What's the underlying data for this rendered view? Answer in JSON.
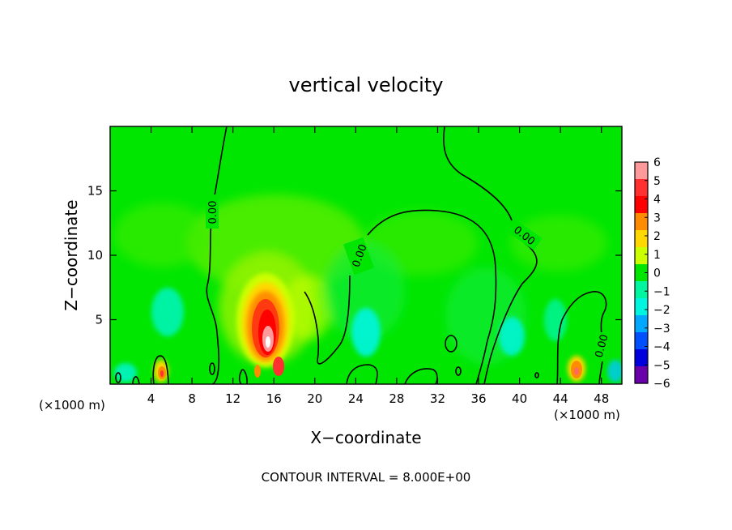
{
  "chart_data": {
    "type": "heatmap",
    "title": "vertical velocity",
    "xlabel": "X−coordinate",
    "ylabel": "Z−coordinate",
    "x_unit": "(×1000 m)",
    "x_unit_right": "(×1000 m)",
    "xlim": [
      0,
      50
    ],
    "ylim": [
      0,
      20
    ],
    "x_ticks": [
      4,
      8,
      12,
      16,
      20,
      24,
      28,
      32,
      36,
      40,
      44,
      48
    ],
    "y_ticks": [
      5,
      10,
      15
    ],
    "x_tick_labels": [
      "4",
      "8",
      "12",
      "16",
      "20",
      "24",
      "28",
      "32",
      "36",
      "40",
      "44",
      "48"
    ],
    "y_tick_labels": [
      "5",
      "10",
      "15"
    ],
    "colorbar": {
      "levels": [
        6,
        5,
        4,
        3,
        2,
        1,
        0,
        -1,
        -2,
        -3,
        -4,
        -5,
        -6
      ],
      "labels": [
        "6",
        "5",
        "4",
        "3",
        "2",
        "1",
        "0",
        "−1",
        "−2",
        "−3",
        "−4",
        "−5",
        "−6"
      ],
      "colors": [
        "#ff9a9a",
        "#ff3030",
        "#ff0000",
        "#ff8c00",
        "#ffd800",
        "#ccff00",
        "#00e600",
        "#00f5a0",
        "#00f5e0",
        "#00a8ff",
        "#0050ff",
        "#0000dd",
        "#6a00aa"
      ]
    },
    "contour_label": "0.00",
    "footer": "CONTOUR INTERVAL = 8.000E+00",
    "features": [
      {
        "type": "updraft",
        "x": 15,
        "z": 3.5,
        "w": 6
      },
      {
        "type": "updraft",
        "x": 5,
        "z": 0.8,
        "w": 4
      },
      {
        "type": "updraft",
        "x": 45.5,
        "z": 1.2,
        "w": 4
      },
      {
        "type": "downdraft",
        "x": 5.5,
        "z": 5,
        "w": -2
      },
      {
        "type": "downdraft",
        "x": 24.5,
        "z": 3.5,
        "w": -2
      },
      {
        "type": "downdraft",
        "x": 37.5,
        "z": 3.5,
        "w": -2
      },
      {
        "type": "downdraft",
        "x": 43.5,
        "z": 4.5,
        "w": -1.5
      }
    ]
  }
}
